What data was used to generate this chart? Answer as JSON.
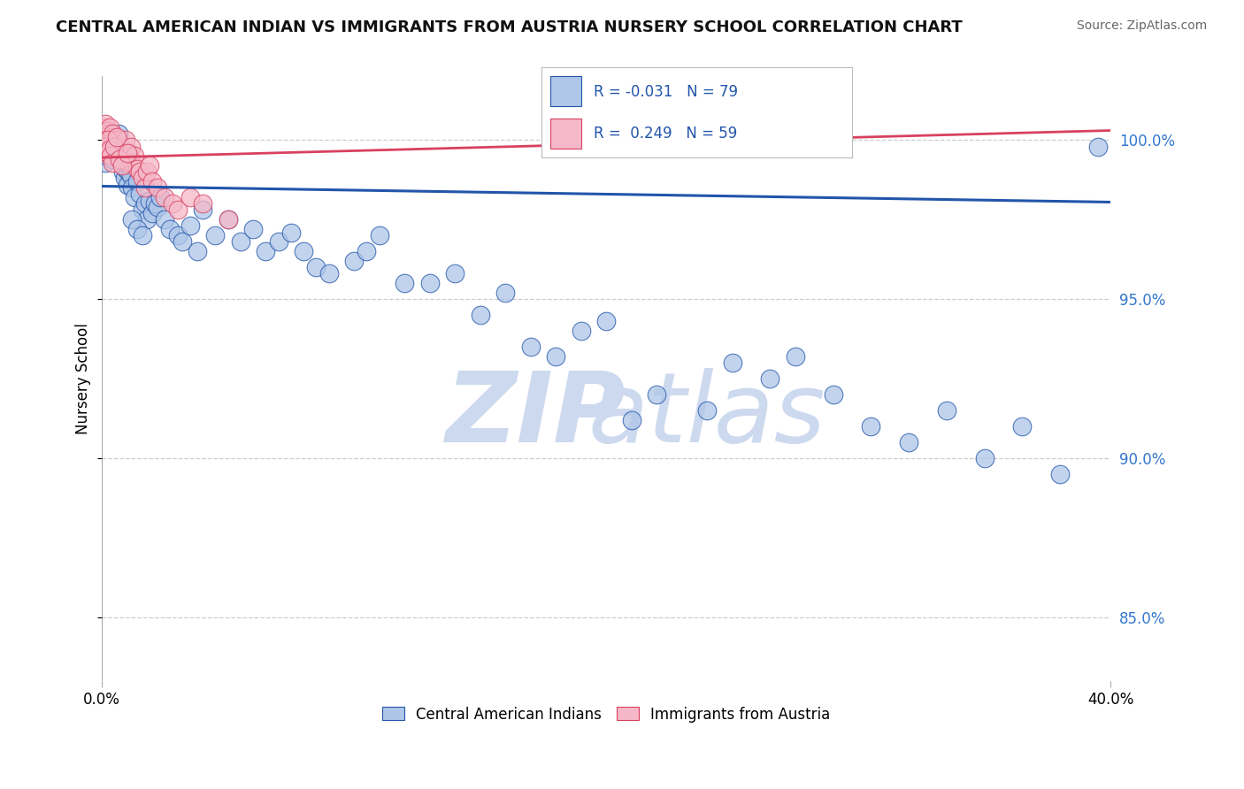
{
  "title": "CENTRAL AMERICAN INDIAN VS IMMIGRANTS FROM AUSTRIA NURSERY SCHOOL CORRELATION CHART",
  "source": "Source: ZipAtlas.com",
  "ylabel": "Nursery School",
  "xlim": [
    0.0,
    40.0
  ],
  "ylim": [
    83.0,
    102.0
  ],
  "yticks": [
    85.0,
    90.0,
    95.0,
    100.0
  ],
  "ytick_labels": [
    "85.0%",
    "90.0%",
    "95.0%",
    "100.0%"
  ],
  "color_blue": "#aec6e8",
  "color_pink": "#f5b8c8",
  "color_line_blue": "#2255aa",
  "color_line_pink": "#d94060",
  "color_grid": "#cccccc",
  "background_color": "#ffffff",
  "blue_trendline_y0": 98.55,
  "blue_trendline_y1": 98.05,
  "pink_trendline_y0": 99.45,
  "pink_trendline_y1": 100.3,
  "blue_x": [
    0.15,
    0.2,
    0.25,
    0.3,
    0.35,
    0.4,
    0.45,
    0.5,
    0.55,
    0.6,
    0.65,
    0.7,
    0.75,
    0.8,
    0.85,
    0.9,
    0.95,
    1.0,
    1.05,
    1.1,
    1.15,
    1.2,
    1.3,
    1.4,
    1.5,
    1.6,
    1.7,
    1.8,
    1.9,
    2.0,
    2.1,
    2.2,
    2.3,
    2.5,
    2.7,
    3.0,
    3.2,
    3.5,
    3.8,
    4.0,
    4.5,
    5.0,
    5.5,
    6.0,
    6.5,
    7.0,
    7.5,
    8.0,
    8.5,
    9.0,
    10.0,
    10.5,
    11.0,
    12.0,
    13.0,
    14.0,
    15.0,
    16.0,
    17.0,
    18.0,
    19.0,
    20.0,
    21.0,
    22.0,
    24.0,
    25.0,
    26.5,
    27.5,
    29.0,
    30.5,
    32.0,
    33.5,
    35.0,
    36.5,
    38.0,
    39.5,
    1.2,
    1.4,
    1.6
  ],
  "blue_y": [
    99.3,
    99.5,
    100.0,
    99.8,
    99.6,
    99.4,
    99.7,
    100.1,
    100.0,
    99.9,
    100.2,
    99.5,
    99.8,
    99.3,
    99.0,
    98.8,
    99.1,
    98.6,
    99.0,
    99.2,
    98.9,
    98.5,
    98.2,
    98.7,
    98.3,
    97.8,
    98.0,
    97.5,
    98.1,
    97.7,
    98.0,
    97.9,
    98.2,
    97.5,
    97.2,
    97.0,
    96.8,
    97.3,
    96.5,
    97.8,
    97.0,
    97.5,
    96.8,
    97.2,
    96.5,
    96.8,
    97.1,
    96.5,
    96.0,
    95.8,
    96.2,
    96.5,
    97.0,
    95.5,
    95.5,
    95.8,
    94.5,
    95.2,
    93.5,
    93.2,
    94.0,
    94.3,
    91.2,
    92.0,
    91.5,
    93.0,
    92.5,
    93.2,
    92.0,
    91.0,
    90.5,
    91.5,
    90.0,
    91.0,
    89.5,
    99.8,
    97.5,
    97.2,
    97.0
  ],
  "pink_x": [
    0.05,
    0.08,
    0.1,
    0.12,
    0.15,
    0.18,
    0.2,
    0.22,
    0.25,
    0.28,
    0.3,
    0.32,
    0.35,
    0.38,
    0.4,
    0.42,
    0.45,
    0.48,
    0.5,
    0.55,
    0.6,
    0.65,
    0.7,
    0.75,
    0.8,
    0.85,
    0.9,
    0.95,
    1.0,
    1.05,
    1.1,
    1.15,
    1.2,
    1.3,
    1.4,
    1.5,
    1.6,
    1.7,
    1.8,
    1.9,
    2.0,
    2.2,
    2.5,
    2.8,
    3.0,
    3.5,
    4.0,
    5.0,
    0.15,
    0.2,
    0.25,
    0.3,
    0.35,
    0.4,
    0.5,
    0.6,
    0.7,
    0.8,
    1.0
  ],
  "pink_y": [
    100.3,
    100.1,
    100.4,
    100.2,
    100.5,
    100.0,
    100.3,
    100.1,
    99.9,
    100.2,
    100.4,
    100.0,
    99.8,
    100.1,
    99.9,
    100.2,
    100.0,
    99.7,
    99.9,
    99.8,
    99.6,
    100.0,
    99.5,
    99.8,
    99.6,
    99.4,
    99.7,
    100.0,
    99.5,
    99.3,
    99.6,
    99.8,
    99.3,
    99.5,
    99.1,
    99.0,
    98.8,
    98.5,
    99.0,
    99.2,
    98.7,
    98.5,
    98.2,
    98.0,
    97.8,
    98.2,
    98.0,
    97.5,
    99.8,
    99.6,
    100.0,
    99.7,
    99.5,
    99.3,
    99.8,
    100.1,
    99.4,
    99.2,
    99.6
  ]
}
